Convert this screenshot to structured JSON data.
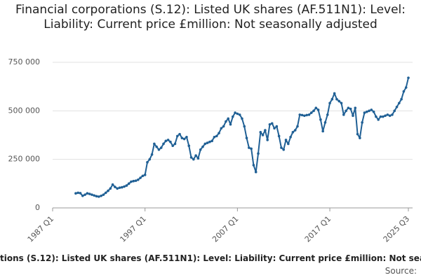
{
  "chart_data": {
    "type": "line",
    "title": "Financial corporations (S.12): Listed UK shares (AF.511N1): Level: Liability: Current price £million: Not seasonally adjusted",
    "source": "Source:",
    "categories": [
      "1987 Q1",
      null,
      null,
      null,
      null,
      null,
      null,
      null,
      null,
      null,
      null,
      null,
      null,
      null,
      null,
      null,
      null,
      null,
      null,
      null,
      null,
      null,
      null,
      null,
      null,
      null,
      null,
      null,
      null,
      null,
      null,
      null,
      null,
      null,
      null,
      null,
      null,
      null,
      null,
      null,
      "1997 Q1",
      null,
      null,
      null,
      null,
      null,
      null,
      null,
      null,
      null,
      null,
      null,
      null,
      null,
      null,
      null,
      null,
      null,
      null,
      null,
      null,
      null,
      null,
      null,
      null,
      null,
      null,
      null,
      null,
      null,
      null,
      null,
      null,
      null,
      null,
      null,
      null,
      null,
      null,
      null,
      "2007 Q1",
      null,
      null,
      null,
      null,
      null,
      null,
      null,
      null,
      null,
      null,
      null,
      null,
      null,
      null,
      null,
      null,
      null,
      null,
      null,
      null,
      null,
      null,
      null,
      null,
      null,
      null,
      null,
      null,
      null,
      null,
      null,
      null,
      null,
      null,
      null,
      null,
      null,
      null,
      null,
      "2017 Q1",
      null,
      null,
      null,
      null,
      null,
      null,
      null,
      null,
      null,
      null,
      null,
      null,
      null,
      null,
      null,
      null,
      null,
      null,
      null,
      null,
      null,
      null,
      null,
      null,
      null,
      null,
      null,
      null,
      null,
      null,
      null,
      null,
      null,
      "2025 Q3"
    ],
    "series": [
      {
        "name": "Listed UK shares",
        "color": "#206095",
        "values": [
          null,
          null,
          null,
          null,
          null,
          null,
          null,
          null,
          null,
          null,
          75000,
          78000,
          76000,
          62000,
          68000,
          75000,
          72000,
          68000,
          64000,
          60000,
          58000,
          62000,
          68000,
          78000,
          88000,
          100000,
          120000,
          108000,
          100000,
          104000,
          106000,
          110000,
          115000,
          125000,
          135000,
          138000,
          140000,
          145000,
          155000,
          165000,
          170000,
          235000,
          250000,
          275000,
          330000,
          315000,
          300000,
          310000,
          330000,
          345000,
          350000,
          340000,
          320000,
          330000,
          370000,
          380000,
          360000,
          355000,
          365000,
          320000,
          260000,
          250000,
          270000,
          255000,
          300000,
          315000,
          330000,
          335000,
          340000,
          345000,
          365000,
          370000,
          385000,
          410000,
          420000,
          445000,
          460000,
          430000,
          470000,
          490000,
          485000,
          480000,
          460000,
          420000,
          360000,
          310000,
          305000,
          220000,
          185000,
          280000,
          390000,
          375000,
          400000,
          350000,
          430000,
          435000,
          410000,
          420000,
          370000,
          310000,
          300000,
          350000,
          330000,
          365000,
          390000,
          400000,
          420000,
          480000,
          478000,
          475000,
          478000,
          480000,
          490000,
          500000,
          515000,
          505000,
          455000,
          395000,
          440000,
          480000,
          540000,
          560000,
          590000,
          560000,
          550000,
          540000,
          480000,
          500000,
          515000,
          510000,
          475000,
          515000,
          380000,
          360000,
          440000,
          490000,
          495000,
          500000,
          505000,
          495000,
          470000,
          455000,
          470000,
          470000,
          475000,
          480000,
          475000,
          480000,
          500000,
          520000,
          540000,
          560000,
          600000,
          620000,
          670000
        ]
      }
    ],
    "ylim": [
      0,
      750000
    ],
    "yticks": [
      0,
      {
        "value": 250000,
        "label": "250 000"
      },
      {
        "value": 500000,
        "label": "500 000"
      },
      {
        "value": 750000,
        "label": "750 000"
      }
    ],
    "grid": true
  }
}
